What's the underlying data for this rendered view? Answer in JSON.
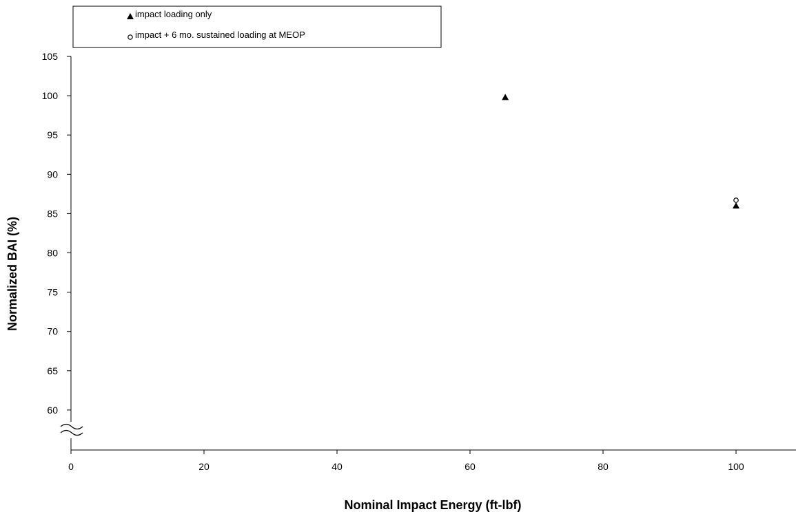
{
  "chart_data": {
    "type": "scatter",
    "xlabel": "Nominal Impact Energy (ft-lbf)",
    "ylabel": "Normalized BAI (%)",
    "xlim": [
      0,
      110
    ],
    "ylim": [
      55,
      105
    ],
    "xticks": [
      "0",
      "20",
      "40",
      "60",
      "80",
      "100"
    ],
    "xtick_values": [
      0,
      20,
      40,
      60,
      80,
      100
    ],
    "yticks": [
      "60",
      "65",
      "70",
      "75",
      "80",
      "85",
      "90",
      "95",
      "100",
      "105"
    ],
    "ytick_values": [
      60,
      65,
      70,
      75,
      80,
      85,
      90,
      95,
      100,
      105
    ],
    "axis_break": "y-axis break symbol near bottom",
    "grid": false,
    "legend_position": "top-left",
    "series": [
      {
        "name": "impact loading only",
        "marker": "filled-triangle",
        "color": "#000000",
        "points": [
          {
            "x": 65.3,
            "y": 99.8
          },
          {
            "x": 100,
            "y": 86.0
          }
        ]
      },
      {
        "name": "impact + 6 mo. sustained loading at MEOP",
        "marker": "open-circle",
        "color": "#000000",
        "points": [
          {
            "x": 100,
            "y": 86.7
          }
        ]
      }
    ]
  }
}
